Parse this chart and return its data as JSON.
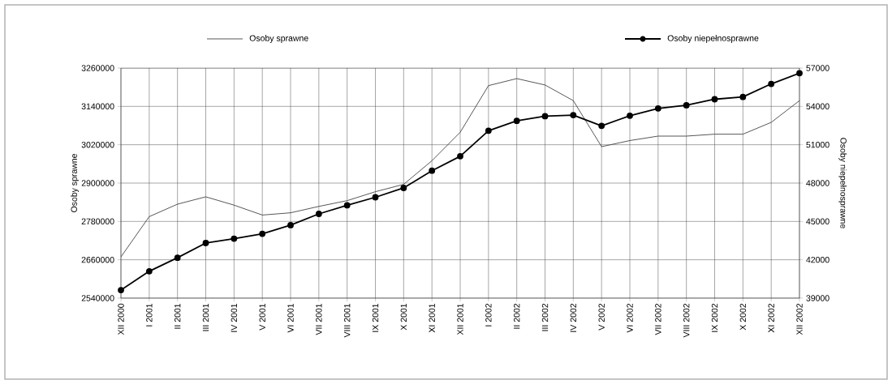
{
  "chart_data": {
    "type": "line",
    "ylabel": "Osoby sprawne",
    "y2label": "Osoby niepełnosprawne",
    "categories": [
      "XII 2000",
      "I 2001",
      "II 2001",
      "III 2001",
      "IV 2001",
      "V 2001",
      "VI 2001",
      "VII 2001",
      "VIII 2001",
      "IX 2001",
      "X 2001",
      "XI 2001",
      "XII 2001",
      "I 2002",
      "II 2002",
      "III 2002",
      "IV 2002",
      "V 2002",
      "VI 2002",
      "VII 2002",
      "VIII 2002",
      "IX 2002",
      "X 2002",
      "XI 2002",
      "XII 2002"
    ],
    "series": [
      {
        "name": "Osoby sprawne",
        "color": "#444444",
        "marker": "none",
        "values": [
          2669000,
          2795000,
          2834000,
          2857000,
          2831000,
          2800000,
          2807000,
          2827000,
          2845000,
          2873000,
          2896000,
          2970000,
          3059000,
          3205000,
          3227000,
          3207000,
          3158000,
          3014000,
          3033000,
          3047000,
          3047000,
          3053000,
          3053000,
          3090000,
          3158000
        ]
      },
      {
        "name": "Osoby niepełnosprawne",
        "color": "#000000",
        "marker": "circle",
        "axis": "y2",
        "values": [
          39630,
          41100,
          42160,
          43310,
          43650,
          44030,
          44710,
          45590,
          46260,
          46890,
          47620,
          48970,
          50100,
          52100,
          52870,
          53230,
          53320,
          52480,
          53270,
          53840,
          54090,
          54560,
          54740,
          55760,
          56600
        ]
      }
    ],
    "ylim": [
      2540000,
      3260000
    ],
    "yticks": [
      2540000,
      2660000,
      2780000,
      2900000,
      3020000,
      3140000,
      3260000
    ],
    "y2lim": [
      39000,
      57000
    ],
    "y2ticks": [
      39000,
      42000,
      45000,
      48000,
      51000,
      54000,
      57000
    ],
    "grid": true,
    "legend": "top"
  }
}
